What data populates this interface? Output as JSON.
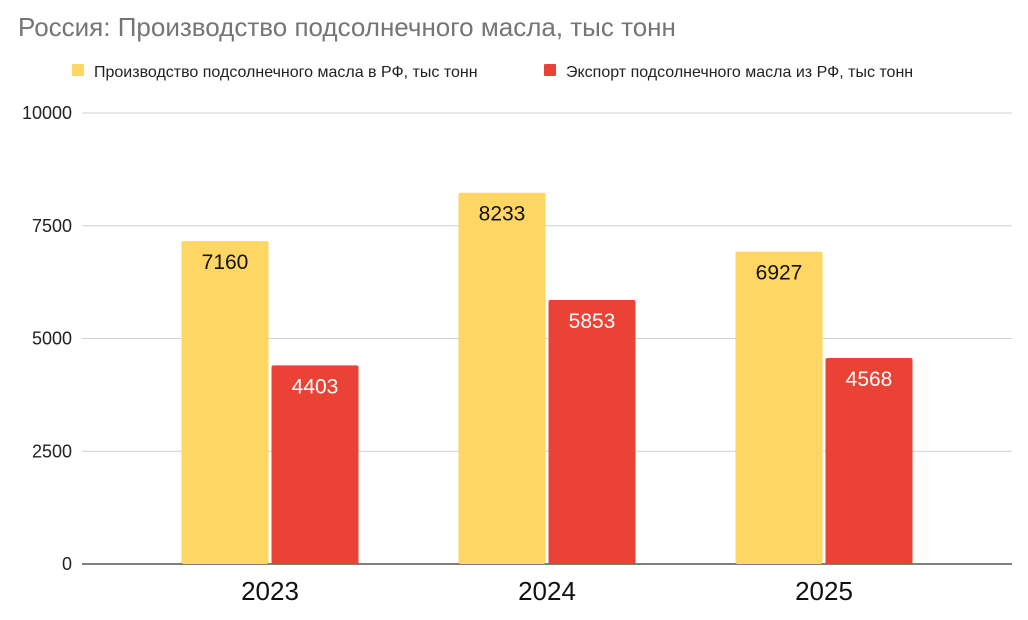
{
  "colors": {
    "production": "#fdd663",
    "export": "#ea4335",
    "label_on_production": "#111111",
    "label_on_export": "#ffffff"
  },
  "chart_data": {
    "type": "bar",
    "title": "Россия: Производство подсолнечного масла, тыс тонн",
    "xlabel": "",
    "ylabel": "",
    "categories": [
      "2023",
      "2024",
      "2025"
    ],
    "series": [
      {
        "name": "Производство подсолнечного масла в РФ, тыс тонн",
        "values": [
          7160,
          8233,
          6927
        ]
      },
      {
        "name": "Экспорт подсолнечного масла из РФ, тыс тонн",
        "values": [
          4403,
          5853,
          4568
        ]
      }
    ],
    "ylim": [
      0,
      10000
    ],
    "yticks": [
      "0",
      "2500",
      "5000",
      "7500",
      "10000"
    ],
    "grid": true,
    "legend_position": "top-left",
    "data_labels": true
  }
}
